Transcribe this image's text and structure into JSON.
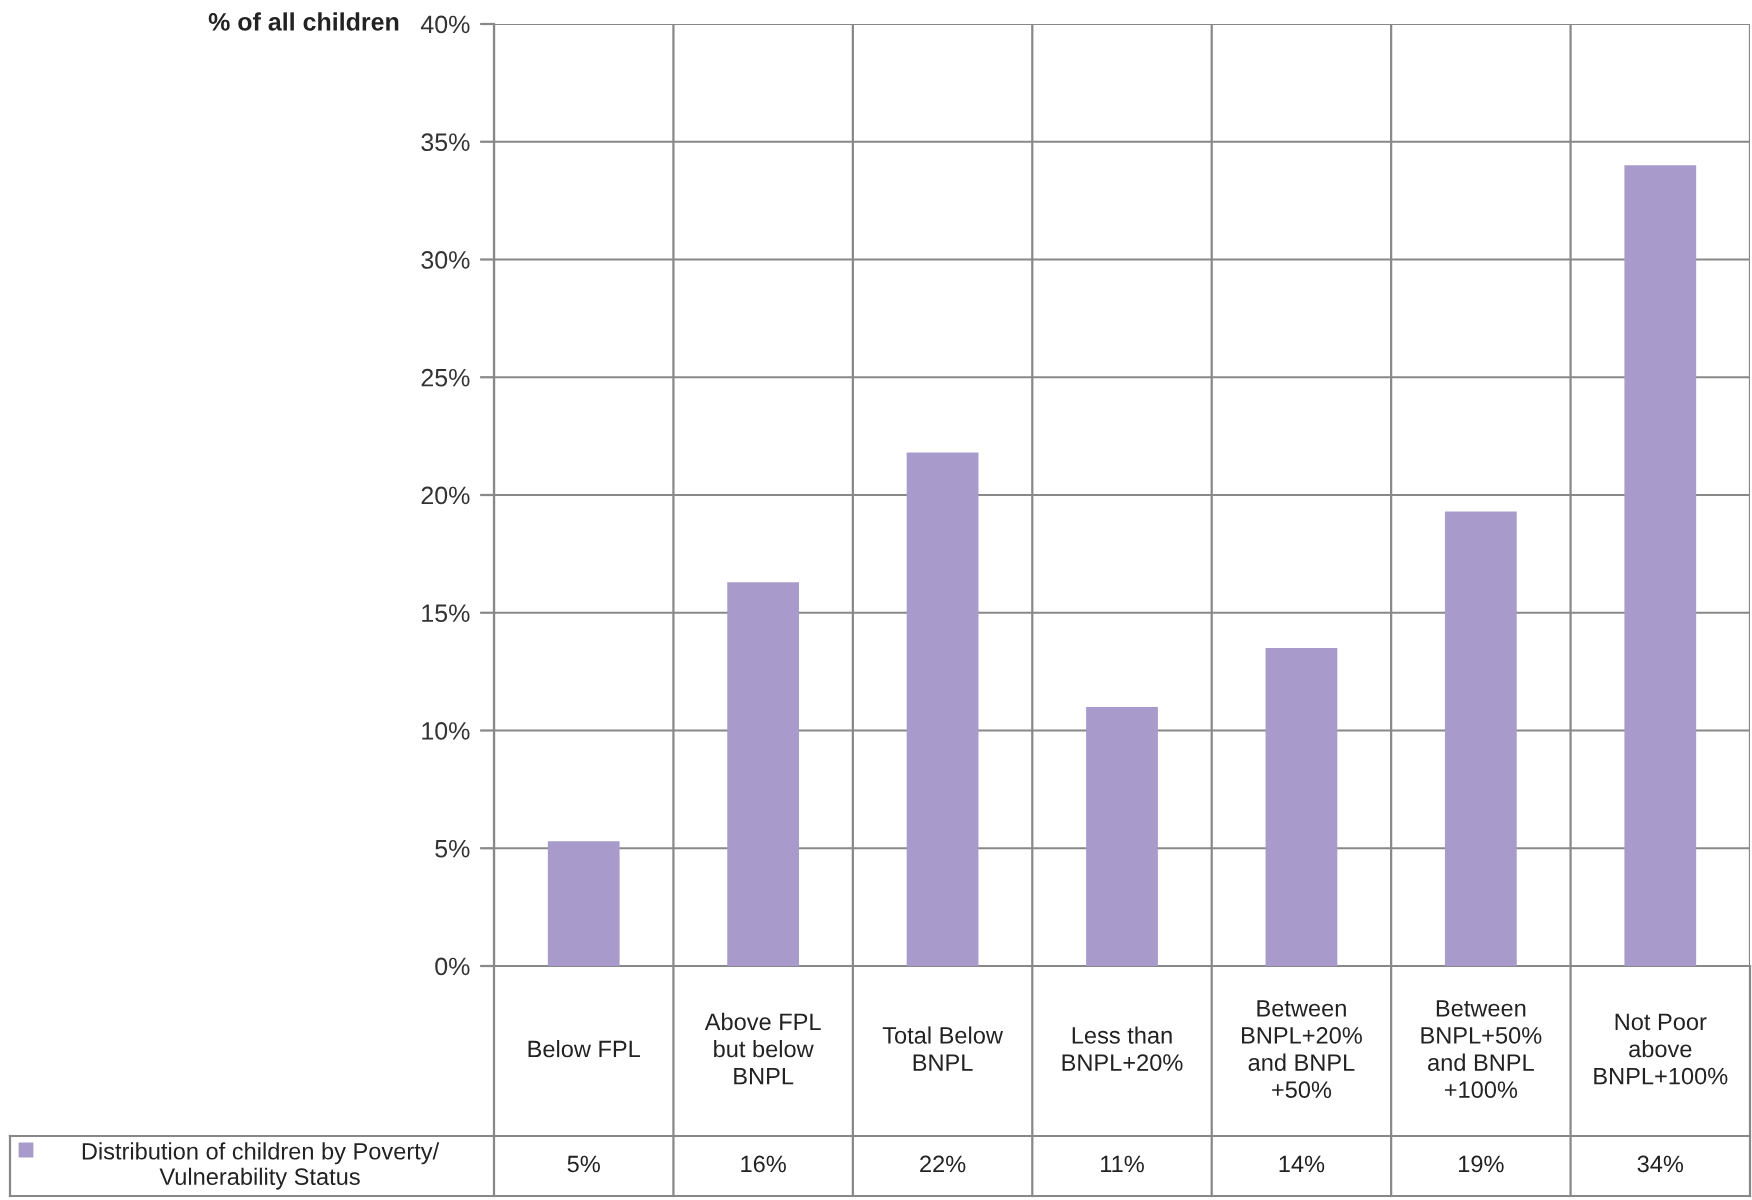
{
  "chart_data": {
    "type": "bar",
    "ylabel": "% of all children",
    "categories": [
      "Below FPL",
      "Above FPL\nbut below\nBNPL",
      "Total Below\nBNPL",
      "Less than\nBNPL+20%",
      "Between\nBNPL+20%\nand BNPL\n+50%",
      "Between\nBNPL+50%\nand BNPL\n+100%",
      "Not Poor\nabove\nBNPL+100%"
    ],
    "series": [
      {
        "name": "Distribution of children by Poverty/\nVulnerability Status",
        "color": "#a89bcb",
        "values": [
          5.3,
          16.3,
          21.8,
          11.0,
          13.5,
          19.3,
          34.0
        ],
        "value_labels": [
          "5%",
          "16%",
          "22%",
          "11%",
          "14%",
          "19%",
          "34%"
        ]
      }
    ],
    "ylim": [
      0,
      40
    ],
    "yticks": [
      {
        "value": 0,
        "label": "0%"
      },
      {
        "value": 5,
        "label": "5%"
      },
      {
        "value": 10,
        "label": "10%"
      },
      {
        "value": 15,
        "label": "15%"
      },
      {
        "value": 20,
        "label": "20%"
      },
      {
        "value": 25,
        "label": "25%"
      },
      {
        "value": 30,
        "label": "30%"
      },
      {
        "value": 35,
        "label": "35%"
      },
      {
        "value": 40,
        "label": "40%"
      }
    ],
    "grid": true,
    "legend": "bottom"
  }
}
